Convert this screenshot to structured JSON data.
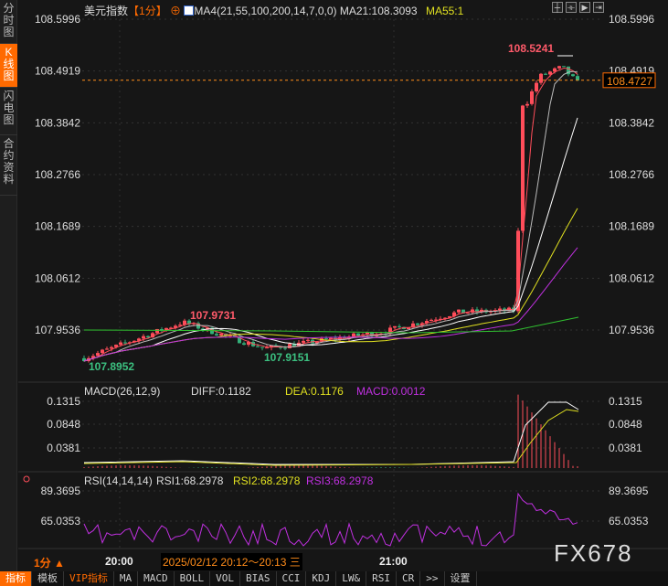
{
  "sidebar": {
    "items": [
      {
        "label": "分时图"
      },
      {
        "label": "K线图",
        "active": true
      },
      {
        "label": "闪电图"
      },
      {
        "label": "合约资料"
      }
    ]
  },
  "header": {
    "symbol": "美元指数",
    "period": "【1分】",
    "indicator": "MA4(21,55,100,200,14,7,0,0)",
    "ma21": "MA21:108.3093",
    "ma55": "MA55:1"
  },
  "price_axis": {
    "ticks": [
      "108.5996",
      "108.4919",
      "108.3842",
      "108.2766",
      "108.1689",
      "108.0612",
      "107.9536"
    ],
    "current": "108.4727"
  },
  "annotations": {
    "high": "108.5241",
    "low1": "107.8952",
    "mid_high": "107.9731",
    "low2": "107.9151"
  },
  "macd": {
    "title": "MACD(26,12,9)",
    "diff": "DIFF:0.1182",
    "dea": "DEA:0.1176",
    "macd": "MACD:0.0012",
    "ticks": [
      "0.1315",
      "0.0848",
      "0.0381"
    ]
  },
  "rsi": {
    "title": "RSI(14,14,14)",
    "rsi1": "RSI1:68.2978",
    "rsi2": "RSI2:68.2978",
    "rsi3": "RSI3:68.2978",
    "ticks": [
      "89.3695",
      "65.0353"
    ]
  },
  "time_axis": {
    "period": "1分 ▲",
    "t1": "20:00",
    "range": "2025/02/12 20:12～20:13 三",
    "t2": "21:00"
  },
  "watermark": "FX678",
  "toolbar": {
    "items": [
      "指标",
      "模板",
      "VIP指标",
      "MA",
      "MACD",
      "BOLL",
      "VOL",
      "BIAS",
      "CCI",
      "KDJ",
      "LW&",
      "RSI",
      "CR",
      ">>",
      "设置"
    ]
  },
  "colors": {
    "up": "#ff4d5a",
    "down": "#33b07a",
    "accent": "#ff6a00",
    "ma_yellow": "#e0e020",
    "macd_magenta": "#c030e0"
  }
}
